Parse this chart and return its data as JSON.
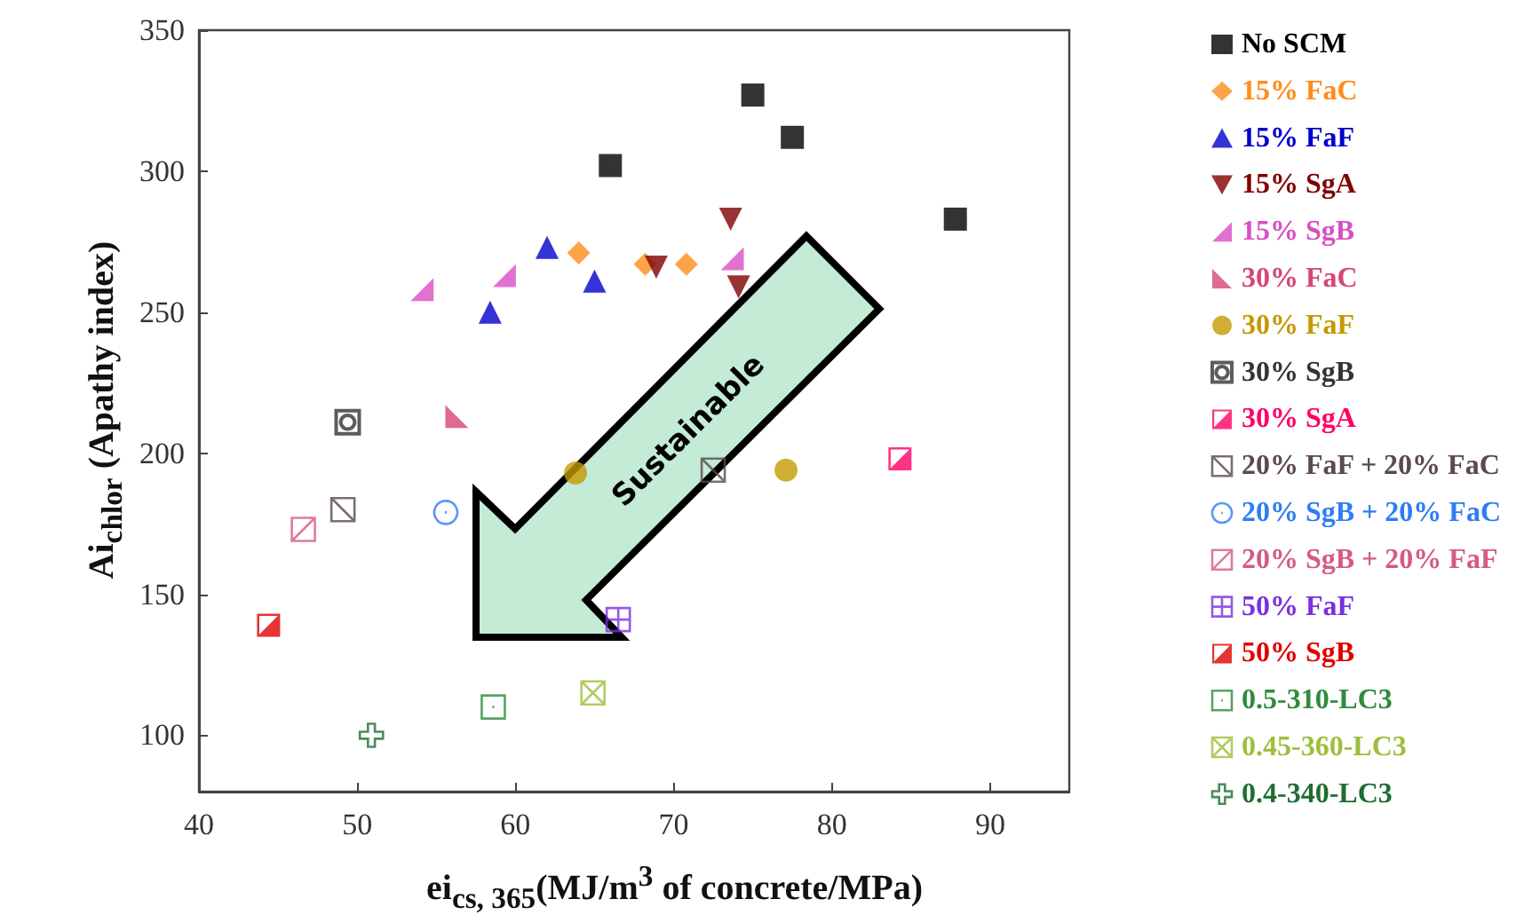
{
  "chart_data": {
    "type": "scatter",
    "xlabel": "ei$_{cs, 365}$(MJ/m$^{3}$ of concrete/MPa)",
    "ylabel": "Ai$_{chlor}$ (Apathy index)",
    "annotations": [
      "Sustainable"
    ],
    "xlim": [
      40,
      95
    ],
    "xticks": [
      40,
      50,
      60,
      70,
      80,
      90
    ],
    "ylim": [
      80,
      350
    ],
    "yticks": [
      100,
      150,
      200,
      250,
      300,
      350
    ],
    "grid": false,
    "legend": "right",
    "series": [
      {
        "name": "No SCM",
        "color": "#000000",
        "x": [
          66.0,
          75.0,
          77.5,
          87.8
        ],
        "values": [
          302,
          327,
          312,
          283
        ]
      },
      {
        "name": "15% FaC",
        "color": "#ff8c1a",
        "x": [
          64.0,
          68.2,
          70.8
        ],
        "values": [
          271,
          267,
          267
        ]
      },
      {
        "name": "15% FaF",
        "color": "#0000cc",
        "x": [
          62.0,
          65.0,
          58.4
        ],
        "values": [
          273,
          261,
          250
        ]
      },
      {
        "name": "15% SgA",
        "color": "#800000",
        "x": [
          73.6,
          68.9,
          74.1
        ],
        "values": [
          283,
          266,
          259
        ]
      },
      {
        "name": "15% SgB",
        "color": "#d94fc4",
        "x": [
          54.1,
          59.3,
          73.7
        ],
        "values": [
          258,
          263,
          269
        ]
      },
      {
        "name": "30% FaC",
        "color": "#d6457a",
        "x": [
          56.3
        ],
        "values": [
          213
        ]
      },
      {
        "name": "30% FaF",
        "color": "#c49a00",
        "x": [
          63.8,
          77.1
        ],
        "values": [
          193,
          194
        ]
      },
      {
        "name": "30% SgB",
        "color": "#333333",
        "x": [
          49.4
        ],
        "values": [
          211
        ]
      },
      {
        "name": "30% SgA",
        "color": "#ff0066",
        "x": [
          84.3
        ],
        "values": [
          198
        ]
      },
      {
        "name": "20% FaF + 20% FaC",
        "color": "#5a4a4a",
        "x": [
          49.1,
          72.5
        ],
        "values": [
          180,
          194
        ]
      },
      {
        "name": "20% SgB + 20% FaC",
        "color": "#2f7cf6",
        "x": [
          55.6
        ],
        "values": [
          179
        ]
      },
      {
        "name": "20% SgB + 20% FaF",
        "color": "#d45c7e",
        "x": [
          46.6
        ],
        "values": [
          173
        ]
      },
      {
        "name": "50% FaF",
        "color": "#7b2fe0",
        "x": [
          66.5
        ],
        "values": [
          141
        ]
      },
      {
        "name": "50% SgB",
        "color": "#e00000",
        "x": [
          44.4
        ],
        "values": [
          139
        ]
      },
      {
        "name": "0.5-310-LC3",
        "color": "#2e8b3c",
        "x": [
          58.6
        ],
        "values": [
          110
        ]
      },
      {
        "name": "0.45-360-LC3",
        "color": "#9cbf3a",
        "x": [
          64.9
        ],
        "values": [
          115
        ]
      },
      {
        "name": "0.4-340-LC3",
        "color": "#1e6e32",
        "x": [
          50.9
        ],
        "values": [
          100
        ]
      }
    ]
  }
}
